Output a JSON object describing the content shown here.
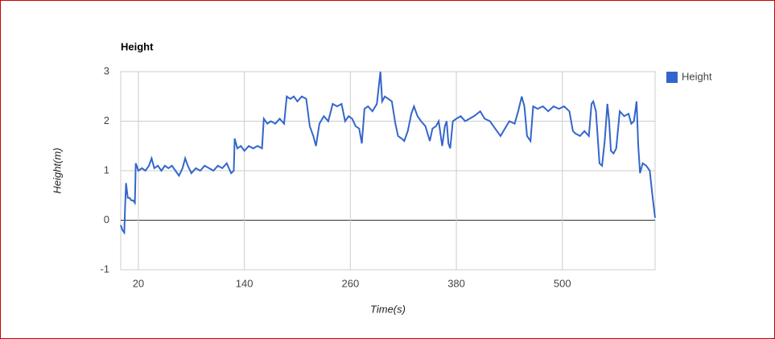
{
  "chart_data": {
    "type": "line",
    "title": "Height",
    "x_label": "Time(s)",
    "y_label": "Height(m)",
    "x": [
      0,
      2,
      4,
      5,
      6,
      8,
      10,
      12,
      14,
      16,
      17,
      20,
      24,
      28,
      32,
      35,
      38,
      42,
      46,
      50,
      54,
      58,
      62,
      66,
      70,
      73,
      76,
      80,
      85,
      90,
      95,
      100,
      105,
      110,
      115,
      120,
      125,
      128,
      129,
      132,
      136,
      140,
      145,
      150,
      155,
      160,
      162,
      166,
      170,
      175,
      180,
      185,
      188,
      192,
      196,
      200,
      205,
      210,
      214,
      218,
      221,
      225,
      230,
      235,
      240,
      245,
      250,
      254,
      258,
      262,
      266,
      270,
      273,
      276,
      280,
      285,
      290,
      294,
      296,
      299,
      303,
      307,
      311,
      314,
      318,
      321,
      325,
      329,
      332,
      336,
      340,
      345,
      350,
      353,
      357,
      360,
      364,
      367,
      369,
      371,
      373,
      376,
      380,
      385,
      390,
      395,
      400,
      407,
      412,
      418,
      424,
      430,
      435,
      440,
      446,
      450,
      454,
      457,
      460,
      464,
      467,
      472,
      478,
      484,
      490,
      496,
      502,
      508,
      512,
      515,
      520,
      525,
      530,
      533,
      535,
      538,
      542,
      545,
      548,
      551,
      553,
      555,
      558,
      561,
      565,
      570,
      575,
      578,
      581,
      584,
      586,
      588,
      591,
      595,
      599,
      602,
      605
    ],
    "series": [
      {
        "name": "Height",
        "color": "#3366cc",
        "values": [
          -0.1,
          -0.2,
          -0.25,
          0.3,
          0.75,
          0.45,
          0.45,
          0.4,
          0.4,
          0.35,
          1.15,
          1.0,
          1.05,
          1.0,
          1.1,
          1.25,
          1.05,
          1.1,
          1.0,
          1.1,
          1.05,
          1.1,
          1.0,
          0.9,
          1.05,
          1.25,
          1.1,
          0.95,
          1.05,
          1.0,
          1.1,
          1.05,
          1.0,
          1.1,
          1.05,
          1.15,
          0.95,
          1.0,
          1.65,
          1.45,
          1.5,
          1.4,
          1.5,
          1.45,
          1.5,
          1.45,
          2.05,
          1.95,
          2.0,
          1.95,
          2.05,
          1.95,
          2.5,
          2.45,
          2.5,
          2.4,
          2.5,
          2.45,
          1.9,
          1.7,
          1.5,
          1.95,
          2.1,
          2.0,
          2.35,
          2.3,
          2.35,
          2.0,
          2.1,
          2.05,
          1.9,
          1.85,
          1.55,
          2.25,
          2.3,
          2.2,
          2.35,
          3.0,
          2.4,
          2.5,
          2.45,
          2.4,
          1.95,
          1.7,
          1.65,
          1.6,
          1.8,
          2.15,
          2.3,
          2.1,
          2.0,
          1.9,
          1.6,
          1.85,
          1.9,
          2.0,
          1.5,
          1.9,
          2.0,
          1.55,
          1.45,
          2.0,
          2.05,
          2.1,
          2.0,
          2.05,
          2.1,
          2.2,
          2.05,
          2.0,
          1.85,
          1.7,
          1.85,
          2.0,
          1.95,
          2.2,
          2.5,
          2.3,
          1.7,
          1.6,
          2.3,
          2.25,
          2.3,
          2.2,
          2.3,
          2.25,
          2.3,
          2.2,
          1.8,
          1.75,
          1.7,
          1.8,
          1.7,
          2.35,
          2.4,
          2.2,
          1.15,
          1.1,
          1.6,
          2.35,
          2.0,
          1.4,
          1.35,
          1.45,
          2.2,
          2.1,
          2.15,
          1.95,
          2.0,
          2.4,
          1.5,
          0.95,
          1.15,
          1.1,
          1.0,
          0.5,
          0.05
        ]
      }
    ],
    "xlim": [
      0,
      605
    ],
    "ylim": [
      -1,
      3
    ],
    "xticks": [
      20,
      140,
      260,
      380,
      500
    ],
    "yticks": [
      -1,
      0,
      1,
      2,
      3
    ],
    "grid": true,
    "legend": "right"
  }
}
